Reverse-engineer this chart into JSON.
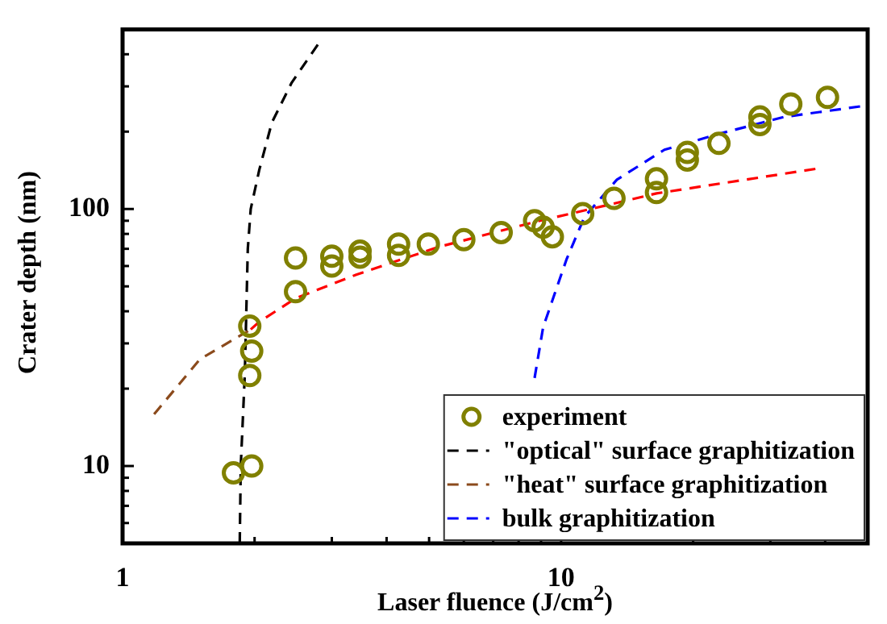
{
  "chart_data": {
    "type": "scatter",
    "xlabel": "Laser fluence (J/cm$^{2}$)",
    "ylabel": "Crater depth (nm)",
    "log": "xy",
    "xlim": [
      1,
      50
    ],
    "ylim": [
      5,
      500
    ],
    "xticks": [
      1,
      {
        "value": 2,
        "label": null
      },
      {
        "value": 3,
        "label": null
      },
      {
        "value": 4,
        "label": null
      },
      {
        "value": 5,
        "label": null
      },
      {
        "value": 6,
        "label": null
      },
      {
        "value": 7,
        "label": null
      },
      {
        "value": 8,
        "label": null
      },
      {
        "value": 9,
        "label": null
      },
      10,
      {
        "value": 20,
        "label": null
      },
      {
        "value": 30,
        "label": null
      },
      {
        "value": 40,
        "label": null
      }
    ],
    "yticks": [
      {
        "value": 6,
        "label": null
      },
      {
        "value": 7,
        "label": null
      },
      {
        "value": 8,
        "label": null
      },
      {
        "value": 9,
        "label": null
      },
      10,
      {
        "value": 20,
        "label": null
      },
      {
        "value": 30,
        "label": null
      },
      {
        "value": 40,
        "label": null
      },
      {
        "value": 50,
        "label": null
      },
      {
        "value": 60,
        "label": null
      },
      {
        "value": 70,
        "label": null
      },
      {
        "value": 80,
        "label": null
      },
      {
        "value": 90,
        "label": null
      },
      100,
      {
        "value": 200,
        "label": null
      },
      {
        "value": 300,
        "label": null
      },
      {
        "value": 400,
        "label": null
      }
    ],
    "grid": false,
    "legend": "bottom right",
    "series": [
      {
        "name": "experiment",
        "marker": "circle",
        "color": "#808000",
        "x": [
          1.79,
          1.97,
          1.95,
          1.97,
          1.95,
          2.48,
          2.48,
          3.0,
          3.0,
          3.48,
          3.48,
          4.26,
          4.26,
          4.98,
          6.0,
          7.3,
          8.7,
          9.1,
          9.55,
          11.2,
          13.2,
          16.5,
          16.5,
          19.4,
          19.4,
          22.9,
          28.4,
          28.4,
          33.4,
          40.5
        ],
        "values": [
          9.4,
          10,
          22.5,
          28,
          35,
          47.7,
          64.5,
          65.5,
          60,
          68.5,
          65,
          73,
          66,
          73,
          76,
          81,
          90,
          85,
          78,
          96,
          110,
          131,
          116,
          166,
          155,
          180,
          228,
          213,
          256,
          272
        ]
      },
      {
        "name": "\"optical\" surface graphitization",
        "type": "line",
        "marker": "none",
        "line_style": "dashed",
        "color": "#000000",
        "x": [
          1.85,
          1.86,
          1.9,
          1.93,
          1.96,
          2.05,
          2.19,
          2.43,
          2.83
        ],
        "values": [
          5,
          10,
          22.7,
          70,
          100,
          142,
          217,
          310,
          453
        ]
      },
      {
        "name": "\"heat\" surface graphitization",
        "type": "line",
        "marker": "none",
        "line_style": "dashed",
        "color": "#8b4a1c",
        "x": [
          1.18,
          1.5,
          1.96
        ],
        "values": [
          15.9,
          26,
          34
        ]
      },
      {
        "type": "line",
        "marker": "none",
        "line_style": "dashed",
        "color": "#ff0000",
        "x": [
          1.96,
          2.05,
          2.48,
          3.41,
          5.23,
          8.7,
          13.2,
          16.5,
          38.8
        ],
        "values": [
          34,
          36.4,
          44.9,
          55.5,
          71,
          89,
          105,
          115,
          144
        ]
      },
      {
        "name": "bulk graphitization",
        "type": "line",
        "marker": "none",
        "line_style": "dashed",
        "color": "#0000ff",
        "x": [
          8.7,
          9.1,
          10.3,
          11.3,
          13.4,
          17.2,
          22.9,
          32.2,
          50
        ],
        "values": [
          22,
          34.7,
          64,
          93,
          130,
          170,
          196,
          228,
          253
        ]
      }
    ]
  }
}
